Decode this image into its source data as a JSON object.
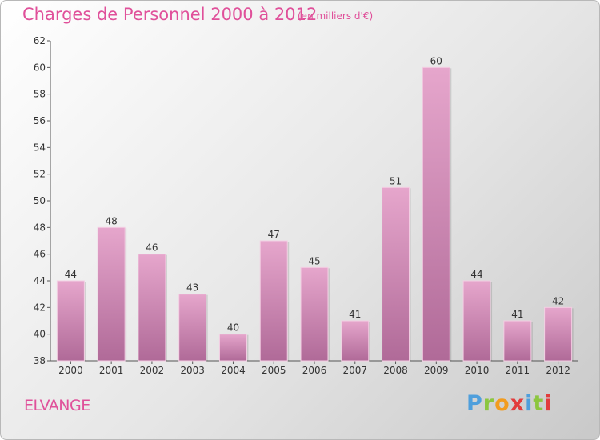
{
  "title": "Charges de Personnel 2000 à 2012",
  "subtitle": "(en milliers d'€)",
  "commune": "ELVANGE",
  "logo": {
    "text": "Proxiti"
  },
  "colors": {
    "bar_top": "#e6a6cc",
    "bar_bottom": "#b06a98",
    "title": "#e0509a"
  },
  "chart_data": {
    "type": "bar",
    "title": "Charges de Personnel 2000 à 2012",
    "subtitle": "(en milliers d'€)",
    "categories": [
      "2000",
      "2001",
      "2002",
      "2003",
      "2004",
      "2005",
      "2006",
      "2007",
      "2008",
      "2009",
      "2010",
      "2011",
      "2012"
    ],
    "values": [
      44,
      48,
      46,
      43,
      40,
      47,
      45,
      41,
      51,
      60,
      44,
      41,
      42
    ],
    "ylim": [
      38,
      62
    ],
    "yticks": [
      38,
      40,
      42,
      44,
      46,
      48,
      50,
      52,
      54,
      56,
      58,
      60,
      62
    ],
    "grid": false,
    "legend": "none",
    "data_labels": true
  }
}
